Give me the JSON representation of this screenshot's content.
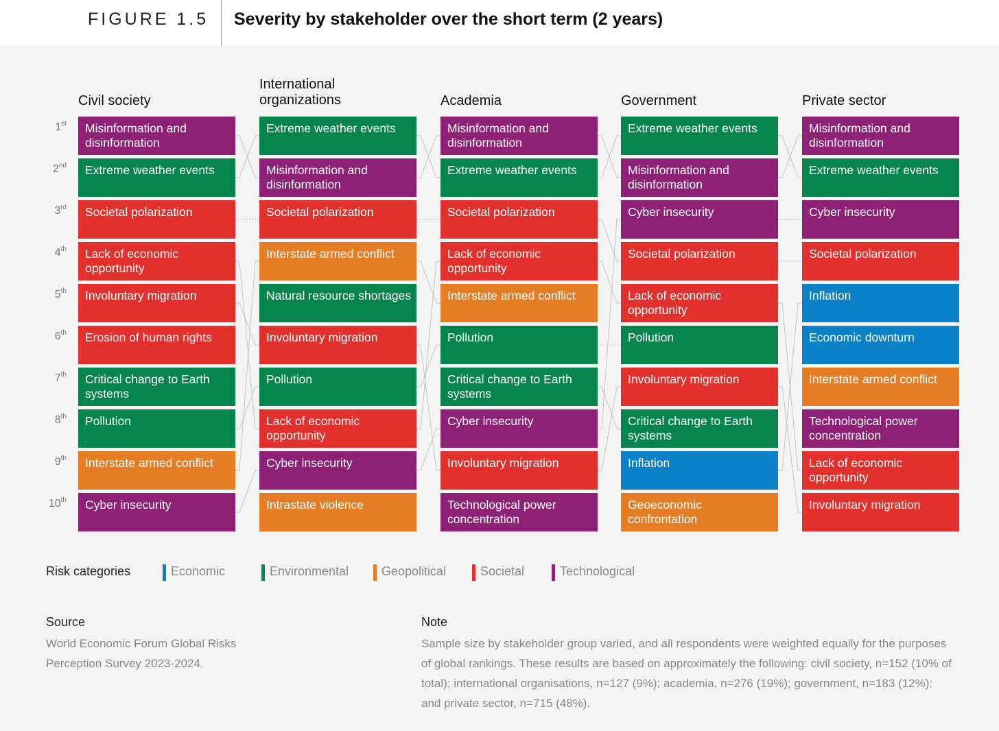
{
  "header": {
    "figure_label": "FIGURE 1.5",
    "title": "Severity by stakeholder over the short term (2 years)"
  },
  "colors": {
    "Economic": "#0a80c7",
    "Environmental": "#06844e",
    "Geopolitical": "#e57d25",
    "Societal": "#e2302c",
    "Technological": "#8e2175"
  },
  "chart_data": {
    "type": "table",
    "ranks": [
      {
        "num": "1",
        "suffix": "st"
      },
      {
        "num": "2",
        "suffix": "nd"
      },
      {
        "num": "3",
        "suffix": "rd"
      },
      {
        "num": "4",
        "suffix": "th"
      },
      {
        "num": "5",
        "suffix": "th"
      },
      {
        "num": "6",
        "suffix": "th"
      },
      {
        "num": "7",
        "suffix": "th"
      },
      {
        "num": "8",
        "suffix": "th"
      },
      {
        "num": "9",
        "suffix": "th"
      },
      {
        "num": "10",
        "suffix": "th"
      }
    ],
    "columns": [
      {
        "title": "Civil society",
        "items": [
          {
            "label": "Misinformation and disinformation",
            "category": "Technological"
          },
          {
            "label": "Extreme weather events",
            "category": "Environmental"
          },
          {
            "label": "Societal polarization",
            "category": "Societal"
          },
          {
            "label": "Lack of economic opportunity",
            "category": "Societal"
          },
          {
            "label": "Involuntary migration",
            "category": "Societal"
          },
          {
            "label": "Erosion of human rights",
            "category": "Societal"
          },
          {
            "label": "Critical change to Earth systems",
            "category": "Environmental"
          },
          {
            "label": "Pollution",
            "category": "Environmental"
          },
          {
            "label": "Interstate armed conflict",
            "category": "Geopolitical"
          },
          {
            "label": "Cyber insecurity",
            "category": "Technological"
          }
        ]
      },
      {
        "title": "International organizations",
        "items": [
          {
            "label": "Extreme weather events",
            "category": "Environmental"
          },
          {
            "label": "Misinformation and disinformation",
            "category": "Technological"
          },
          {
            "label": "Societal polarization",
            "category": "Societal"
          },
          {
            "label": "Interstate armed conflict",
            "category": "Geopolitical"
          },
          {
            "label": "Natural resource shortages",
            "category": "Environmental"
          },
          {
            "label": "Involuntary migration",
            "category": "Societal"
          },
          {
            "label": "Pollution",
            "category": "Environmental"
          },
          {
            "label": "Lack of economic opportunity",
            "category": "Societal"
          },
          {
            "label": "Cyber insecurity",
            "category": "Technological"
          },
          {
            "label": "Intrastate violence",
            "category": "Geopolitical"
          }
        ]
      },
      {
        "title": "Academia",
        "items": [
          {
            "label": "Misinformation and disinformation",
            "category": "Technological"
          },
          {
            "label": "Extreme weather events",
            "category": "Environmental"
          },
          {
            "label": "Societal polarization",
            "category": "Societal"
          },
          {
            "label": "Lack of economic opportunity",
            "category": "Societal"
          },
          {
            "label": "Interstate armed conflict",
            "category": "Geopolitical"
          },
          {
            "label": "Pollution",
            "category": "Environmental"
          },
          {
            "label": "Critical change to Earth systems",
            "category": "Environmental"
          },
          {
            "label": "Cyber insecurity",
            "category": "Technological"
          },
          {
            "label": "Involuntary migration",
            "category": "Societal"
          },
          {
            "label": "Technological power concentration",
            "category": "Technological"
          }
        ]
      },
      {
        "title": "Government",
        "items": [
          {
            "label": "Extreme weather events",
            "category": "Environmental"
          },
          {
            "label": "Misinformation and disinformation",
            "category": "Technological"
          },
          {
            "label": "Cyber insecurity",
            "category": "Technological"
          },
          {
            "label": "Societal polarization",
            "category": "Societal"
          },
          {
            "label": "Lack of economic opportunity",
            "category": "Societal"
          },
          {
            "label": "Pollution",
            "category": "Environmental"
          },
          {
            "label": "Involuntary migration",
            "category": "Societal"
          },
          {
            "label": "Critical change to Earth systems",
            "category": "Environmental"
          },
          {
            "label": "Inflation",
            "category": "Economic"
          },
          {
            "label": "Geoeconomic confrontation",
            "category": "Geopolitical"
          }
        ]
      },
      {
        "title": "Private sector",
        "items": [
          {
            "label": "Misinformation and disinformation",
            "category": "Technological"
          },
          {
            "label": "Extreme weather events",
            "category": "Environmental"
          },
          {
            "label": "Cyber insecurity",
            "category": "Technological"
          },
          {
            "label": "Societal polarization",
            "category": "Societal"
          },
          {
            "label": "Inflation",
            "category": "Economic"
          },
          {
            "label": "Economic downturn",
            "category": "Economic"
          },
          {
            "label": "Interstate armed conflict",
            "category": "Geopolitical"
          },
          {
            "label": "Technological power concentration",
            "category": "Technological"
          },
          {
            "label": "Lack of economic opportunity",
            "category": "Societal"
          },
          {
            "label": "Involuntary migration",
            "category": "Societal"
          }
        ]
      }
    ]
  },
  "legend": {
    "title": "Risk categories",
    "items": [
      "Economic",
      "Environmental",
      "Geopolitical",
      "Societal",
      "Technological"
    ]
  },
  "source": {
    "heading": "Source",
    "text": "World Economic Forum Global Risks Perception Survey 2023-2024."
  },
  "note": {
    "heading": "Note",
    "text": "Sample size by stakeholder group varied, and all respondents were weighted equally for the purposes of global rankings. These results are based on approximately the following: civil society, n=152 (10% of total); international organisations, n=127 (9%); academia, n=276 (19%); government, n=183 (12%); and private sector, n=715 (48%)."
  }
}
